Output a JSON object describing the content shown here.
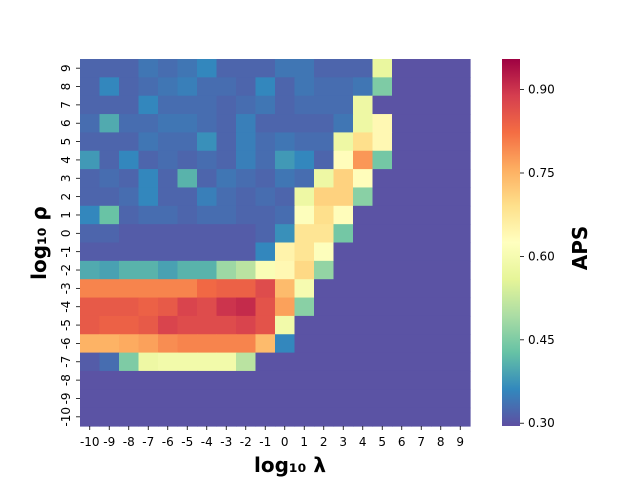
{
  "chart_data": {
    "type": "heatmap",
    "xlabel": "log₁₀ λ",
    "ylabel": "log₁₀ ρ",
    "colorbar_label": "APS",
    "colormap": "Spectral_r",
    "vmin": 0.295,
    "vmax": 0.955,
    "x_categories": [
      "-10",
      "-9",
      "-8",
      "-7",
      "-6",
      "-5",
      "-4",
      "-3",
      "-2",
      "-1",
      "0",
      "1",
      "2",
      "3",
      "4",
      "5",
      "6",
      "7",
      "8",
      "9"
    ],
    "y_categories": [
      "9",
      "8",
      "7",
      "6",
      "5",
      "4",
      "3",
      "2",
      "1",
      "0",
      "-1",
      "-2",
      "-3",
      "-4",
      "-5",
      "-6",
      "-7",
      "-8",
      "-9",
      "-10"
    ],
    "colorbar_ticks": [
      0.3,
      0.45,
      0.6,
      0.75,
      0.9
    ],
    "colorbar_tick_labels": [
      "0.30",
      "0.45",
      "0.60",
      "0.75",
      "0.90"
    ],
    "values": [
      [
        0.32,
        0.32,
        0.32,
        0.34,
        0.33,
        0.34,
        0.36,
        0.32,
        0.32,
        0.32,
        0.34,
        0.34,
        0.32,
        0.32,
        0.32,
        0.57,
        0.3,
        0.3,
        0.3,
        0.3
      ],
      [
        0.32,
        0.36,
        0.32,
        0.33,
        0.34,
        0.35,
        0.33,
        0.33,
        0.32,
        0.36,
        0.32,
        0.34,
        0.33,
        0.33,
        0.34,
        0.45,
        0.3,
        0.3,
        0.3,
        0.3
      ],
      [
        0.32,
        0.32,
        0.32,
        0.36,
        0.33,
        0.33,
        0.33,
        0.32,
        0.33,
        0.34,
        0.32,
        0.33,
        0.33,
        0.33,
        0.58,
        0.3,
        0.3,
        0.3,
        0.3,
        0.3
      ],
      [
        0.33,
        0.4,
        0.33,
        0.33,
        0.34,
        0.34,
        0.33,
        0.32,
        0.35,
        0.32,
        0.32,
        0.32,
        0.32,
        0.34,
        0.58,
        0.64,
        0.3,
        0.3,
        0.3,
        0.3
      ],
      [
        0.32,
        0.32,
        0.32,
        0.34,
        0.33,
        0.33,
        0.37,
        0.32,
        0.35,
        0.33,
        0.34,
        0.33,
        0.33,
        0.58,
        0.69,
        0.64,
        0.3,
        0.3,
        0.3,
        0.3
      ],
      [
        0.38,
        0.32,
        0.36,
        0.32,
        0.33,
        0.32,
        0.33,
        0.32,
        0.35,
        0.33,
        0.38,
        0.36,
        0.32,
        0.63,
        0.78,
        0.44,
        0.3,
        0.3,
        0.3,
        0.3
      ],
      [
        0.32,
        0.33,
        0.32,
        0.36,
        0.32,
        0.41,
        0.32,
        0.34,
        0.33,
        0.32,
        0.34,
        0.33,
        0.58,
        0.71,
        0.63,
        0.3,
        0.3,
        0.3,
        0.3,
        0.3
      ],
      [
        0.32,
        0.32,
        0.33,
        0.36,
        0.32,
        0.32,
        0.35,
        0.33,
        0.32,
        0.33,
        0.32,
        0.58,
        0.71,
        0.71,
        0.46,
        0.3,
        0.3,
        0.3,
        0.3,
        0.3
      ],
      [
        0.36,
        0.43,
        0.32,
        0.33,
        0.33,
        0.32,
        0.33,
        0.33,
        0.32,
        0.32,
        0.33,
        0.62,
        0.69,
        0.63,
        0.3,
        0.3,
        0.3,
        0.3,
        0.3,
        0.3
      ],
      [
        0.32,
        0.32,
        0.31,
        0.31,
        0.31,
        0.31,
        0.31,
        0.31,
        0.31,
        0.32,
        0.37,
        0.68,
        0.68,
        0.44,
        0.3,
        0.3,
        0.3,
        0.3,
        0.3,
        0.3
      ],
      [
        0.31,
        0.31,
        0.31,
        0.31,
        0.31,
        0.31,
        0.31,
        0.31,
        0.31,
        0.36,
        0.65,
        0.68,
        0.62,
        0.3,
        0.3,
        0.3,
        0.3,
        0.3,
        0.3,
        0.3
      ],
      [
        0.4,
        0.39,
        0.41,
        0.41,
        0.39,
        0.41,
        0.41,
        0.48,
        0.51,
        0.61,
        0.64,
        0.7,
        0.47,
        0.3,
        0.3,
        0.3,
        0.3,
        0.3,
        0.3,
        0.3
      ],
      [
        0.8,
        0.8,
        0.8,
        0.8,
        0.8,
        0.8,
        0.83,
        0.84,
        0.84,
        0.87,
        0.74,
        0.6,
        0.3,
        0.3,
        0.3,
        0.3,
        0.3,
        0.3,
        0.3,
        0.3
      ],
      [
        0.85,
        0.85,
        0.85,
        0.84,
        0.85,
        0.88,
        0.87,
        0.9,
        0.91,
        0.86,
        0.77,
        0.46,
        0.3,
        0.3,
        0.3,
        0.3,
        0.3,
        0.3,
        0.3,
        0.3
      ],
      [
        0.85,
        0.84,
        0.84,
        0.85,
        0.88,
        0.87,
        0.87,
        0.87,
        0.88,
        0.86,
        0.59,
        0.3,
        0.3,
        0.3,
        0.3,
        0.3,
        0.3,
        0.3,
        0.3,
        0.3
      ],
      [
        0.75,
        0.75,
        0.76,
        0.77,
        0.79,
        0.8,
        0.8,
        0.8,
        0.8,
        0.74,
        0.36,
        0.3,
        0.3,
        0.3,
        0.3,
        0.3,
        0.3,
        0.3,
        0.3,
        0.3
      ],
      [
        0.31,
        0.33,
        0.45,
        0.58,
        0.59,
        0.59,
        0.59,
        0.59,
        0.51,
        0.3,
        0.3,
        0.3,
        0.3,
        0.3,
        0.3,
        0.3,
        0.3,
        0.3,
        0.3,
        0.3
      ],
      [
        0.3,
        0.3,
        0.3,
        0.3,
        0.3,
        0.3,
        0.3,
        0.3,
        0.3,
        0.3,
        0.3,
        0.3,
        0.3,
        0.3,
        0.3,
        0.3,
        0.3,
        0.3,
        0.3,
        0.3
      ],
      [
        0.3,
        0.3,
        0.3,
        0.3,
        0.3,
        0.3,
        0.3,
        0.3,
        0.3,
        0.3,
        0.3,
        0.3,
        0.3,
        0.3,
        0.3,
        0.3,
        0.3,
        0.3,
        0.3,
        0.3
      ],
      [
        0.3,
        0.3,
        0.3,
        0.3,
        0.3,
        0.3,
        0.3,
        0.3,
        0.3,
        0.3,
        0.3,
        0.3,
        0.3,
        0.3,
        0.3,
        0.3,
        0.3,
        0.3,
        0.3,
        0.3
      ]
    ]
  }
}
